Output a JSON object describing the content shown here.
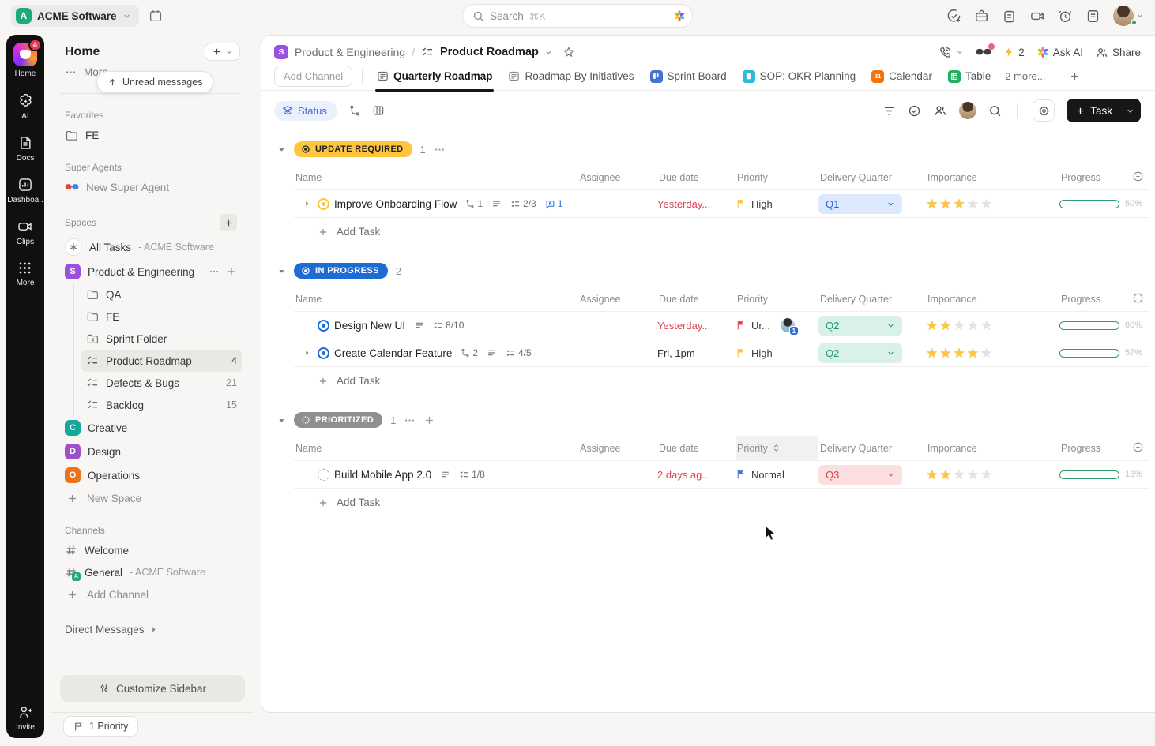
{
  "topbar": {
    "workspace": {
      "initial": "A",
      "name": "ACME Software"
    },
    "search": {
      "placeholder": "Search",
      "shortcut": "⌘K"
    }
  },
  "rail": {
    "items": [
      {
        "label": "Home",
        "badge": "4"
      },
      {
        "label": "AI"
      },
      {
        "label": "Docs"
      },
      {
        "label": "Dashboa.."
      },
      {
        "label": "Clips"
      },
      {
        "label": "More"
      }
    ],
    "invite_label": "Invite"
  },
  "sidebar": {
    "title": "Home",
    "more_label": "More",
    "unread_pill": "Unread messages",
    "favorites": {
      "heading": "Favorites",
      "items": [
        {
          "label": "FE"
        }
      ]
    },
    "super_agents": {
      "heading": "Super Agents",
      "items": [
        {
          "label": "New Super Agent"
        }
      ]
    },
    "spaces": {
      "heading": "Spaces",
      "all_tasks": {
        "label": "All Tasks",
        "suffix": "- ACME Software"
      },
      "product_eng": {
        "initial": "S",
        "label": "Product & Engineering"
      },
      "children": [
        {
          "label": "QA"
        },
        {
          "label": "FE"
        },
        {
          "label": "Sprint Folder"
        },
        {
          "label": "Product Roadmap",
          "count": "4"
        },
        {
          "label": "Defects & Bugs",
          "count": "21"
        },
        {
          "label": "Backlog",
          "count": "15"
        }
      ],
      "others": [
        {
          "initial": "C",
          "label": "Creative",
          "color": "#16a79c"
        },
        {
          "initial": "D",
          "label": "Design",
          "color": "#a14ecb"
        },
        {
          "initial": "O",
          "label": "Operations",
          "color": "#ee7219"
        }
      ],
      "new_space_label": "New Space"
    },
    "channels": {
      "heading": "Channels",
      "items": [
        {
          "label": "Welcome"
        },
        {
          "label": "General",
          "suffix": "- ACME Software"
        }
      ],
      "add_label": "Add Channel"
    },
    "direct_messages_label": "Direct Messages",
    "customize_label": "Customize Sidebar",
    "priority_pill": "1 Priority"
  },
  "main": {
    "breadcrumb": {
      "space_initial": "S",
      "space": "Product & Engineering",
      "separator": "/",
      "page": "Product Roadmap"
    },
    "header_right": {
      "bolt_count": "2",
      "ask_ai": "Ask AI",
      "share": "Share"
    },
    "tabs": {
      "add_channel": "Add Channel",
      "items": [
        {
          "label": "Quarterly Roadmap"
        },
        {
          "label": "Roadmap By Initiatives"
        },
        {
          "label": "Sprint Board"
        },
        {
          "label": "SOP: OKR Planning"
        },
        {
          "label": "Calendar"
        },
        {
          "label": "Table"
        }
      ],
      "more_label": "2 more..."
    },
    "toolbar": {
      "group_by": "Status",
      "task_button": "Task"
    },
    "columns": [
      "Name",
      "Assignee",
      "Due date",
      "Priority",
      "Delivery Quarter",
      "Importance",
      "Progress"
    ],
    "add_task_label": "Add Task",
    "groups": [
      {
        "label": "UPDATE REQUIRED",
        "count": "1",
        "tasks": [
          {
            "name": "Improve Onboarding Flow",
            "links": "1",
            "checklist": "2/3",
            "comments": "1",
            "due": "Yesterday...",
            "priority": "High",
            "quarter": "Q1",
            "stars": 3,
            "progress": 50,
            "progress_label": "50%"
          }
        ]
      },
      {
        "label": "IN PROGRESS",
        "count": "2",
        "tasks": [
          {
            "name": "Design New UI",
            "checklist": "8/10",
            "due": "Yesterday...",
            "priority": "Ur...",
            "priority_badge": "1",
            "quarter": "Q2",
            "stars": 2,
            "progress": 80,
            "progress_label": "80%"
          },
          {
            "name": "Create Calendar Feature",
            "links": "2",
            "checklist": "4/5",
            "due": "Fri, 1pm",
            "priority": "High",
            "quarter": "Q2",
            "stars": 4,
            "progress": 57,
            "progress_label": "57%"
          }
        ]
      },
      {
        "label": "PRIORITIZED",
        "count": "1",
        "tasks": [
          {
            "name": "Build Mobile App 2.0",
            "checklist": "1/8",
            "due": "2 days ag...",
            "priority": "Normal",
            "quarter": "Q3",
            "stars": 2,
            "progress": 13,
            "progress_label": "13%"
          }
        ]
      }
    ]
  },
  "colors": {
    "accent_yellow": "#ffc53d",
    "accent_blue": "#1e6bd6",
    "accent_grey": "#8f8f8f",
    "due_red": "#da4451",
    "urgent_red": "#e0434e",
    "normal_blue": "#4573d2",
    "q1_bg": "#dbe8fd",
    "q2_bg": "#d9f1e6",
    "q3_bg": "#fcdfe0",
    "progress_green": "#2f9e69",
    "workspace_teal": "#1ea97c",
    "space_purple": "#9b51e0"
  }
}
